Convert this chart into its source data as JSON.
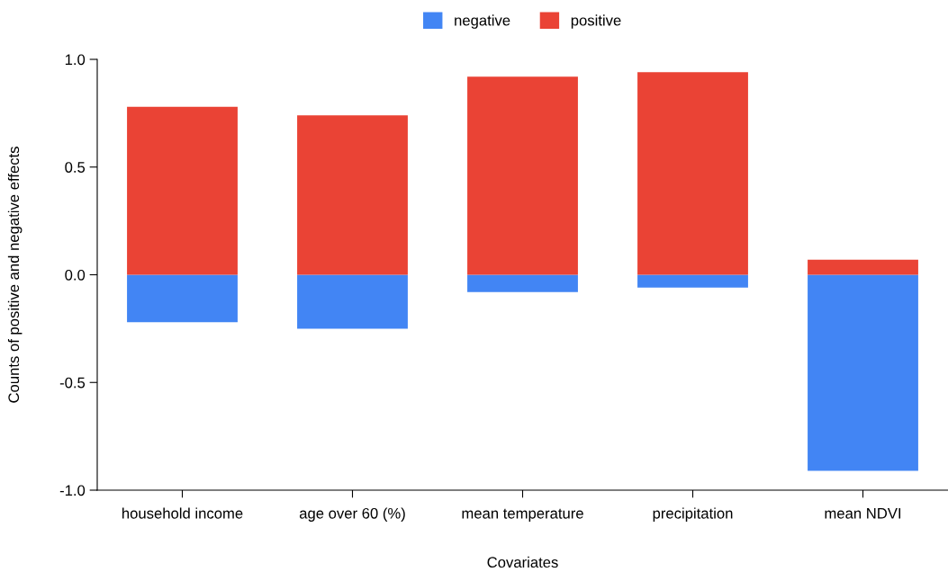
{
  "chart_data": {
    "type": "bar",
    "stacked": true,
    "xlabel": "Covariates",
    "ylabel": "Counts of positive and negative effects",
    "categories": [
      "household income",
      "age over 60 (%)",
      "mean temperature",
      "precipitation",
      "mean NDVI"
    ],
    "series": [
      {
        "name": "negative",
        "color": "#4285f4",
        "values": [
          -0.22,
          -0.25,
          -0.08,
          -0.06,
          -0.91
        ]
      },
      {
        "name": "positive",
        "color": "#ea4335",
        "values": [
          0.78,
          0.74,
          0.92,
          0.94,
          0.07
        ]
      }
    ],
    "ylim": [
      -1.0,
      1.0
    ],
    "yticks": [
      {
        "value": -1.0,
        "label": "-1.0"
      },
      {
        "value": -0.5,
        "label": "-0.5"
      },
      {
        "value": 0.0,
        "label": "0.0"
      },
      {
        "value": 0.5,
        "label": "0.5"
      },
      {
        "value": 1.0,
        "label": "1.0"
      }
    ],
    "grid": false,
    "legend": "top"
  }
}
